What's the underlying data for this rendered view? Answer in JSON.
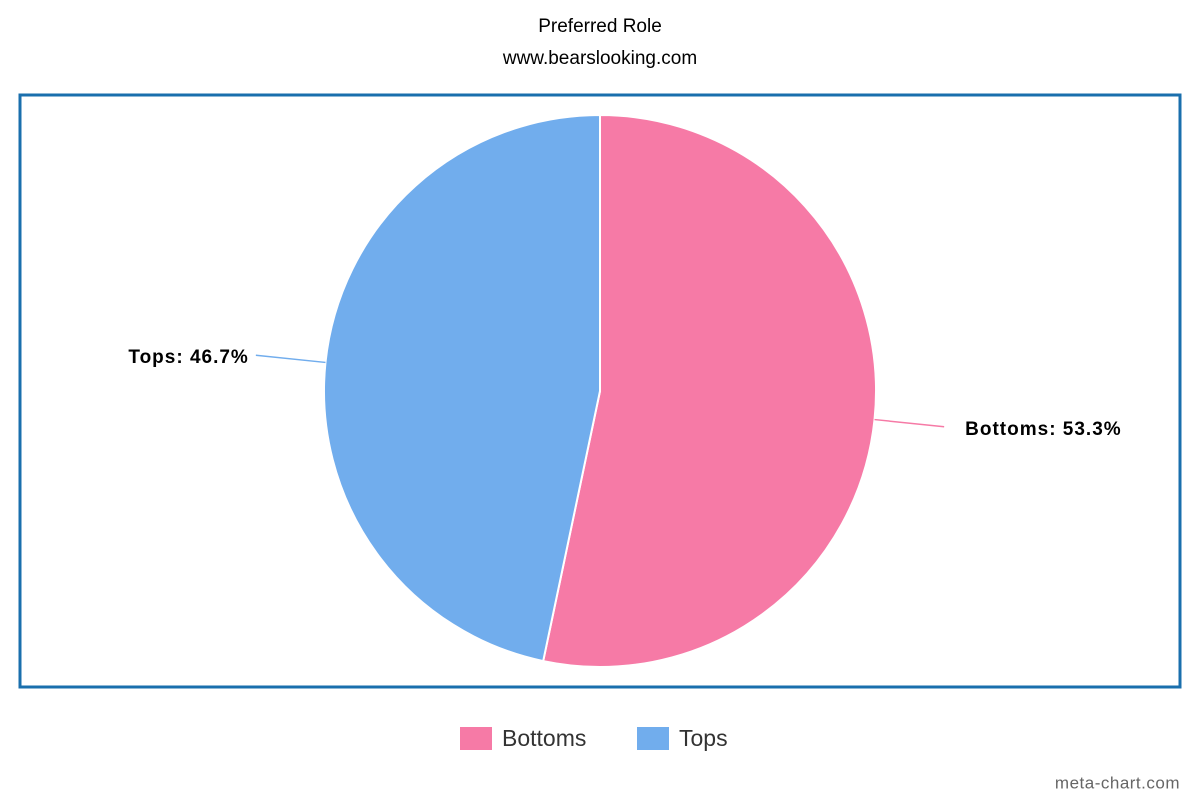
{
  "chart_data": {
    "type": "pie",
    "title": "Preferred Role",
    "subtitle": "www.bearslooking.com",
    "categories": [
      "Bottoms",
      "Tops"
    ],
    "values": [
      53.3,
      46.7
    ],
    "value_labels": [
      "Bottoms: 53.3%",
      "Tops: 46.7%"
    ],
    "colors": [
      "#f67aa6",
      "#71aded"
    ],
    "legend": "bottom",
    "credit": "meta-chart.com"
  }
}
